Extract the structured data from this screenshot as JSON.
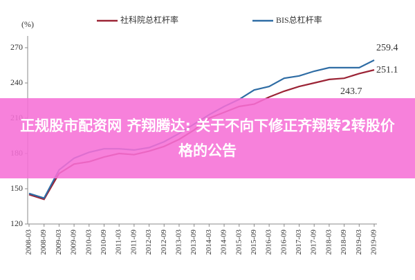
{
  "chart_data": {
    "type": "line",
    "y_label": "(%)",
    "categories": [
      "2008-03",
      "2008-09",
      "2009-03",
      "2009-09",
      "2010-03",
      "2010-09",
      "2011-03",
      "2011-09",
      "2012-03",
      "2012-09",
      "2013-03",
      "2013-09",
      "2014-03",
      "2014-09",
      "2015-03",
      "2015-09",
      "2016-03",
      "2016-09",
      "2017-03",
      "2017-09",
      "2018-03",
      "2018-09",
      "2019-03",
      "2019-09"
    ],
    "series": [
      {
        "name": "社科院总杠杆率",
        "color": "#9b2335",
        "values": [
          145,
          141,
          163,
          171,
          173,
          177,
          180,
          179,
          182,
          186,
          192,
          200,
          210,
          215,
          220,
          222,
          228,
          233,
          237,
          240,
          243,
          244,
          248,
          251.1
        ]
      },
      {
        "name": "BIS总杠杆率",
        "color": "#2e6ca4",
        "values": [
          146,
          142,
          166,
          176,
          181,
          184,
          184,
          183,
          185,
          190,
          197,
          205,
          213,
          220,
          226,
          234,
          237,
          244,
          246,
          250,
          253,
          253,
          253,
          259.4
        ]
      }
    ],
    "annotations": [
      "259.4",
      "251.1",
      "243.7"
    ],
    "ylim": [
      120,
      280
    ],
    "yticks": [
      120,
      150,
      180,
      210,
      240,
      270
    ],
    "grid": false
  },
  "banner": {
    "text": "正规股市配资网 齐翔腾达: 关于不向下修正齐翔转2转股价格的公告"
  }
}
